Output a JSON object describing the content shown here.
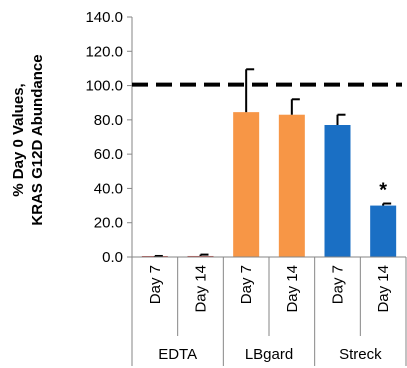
{
  "chart_data": {
    "type": "bar",
    "ylabel_lines": [
      "% Day 0 Values,",
      "KRAS G12D Abundance"
    ],
    "ylim": [
      0,
      140
    ],
    "yticks": [
      0,
      20,
      40,
      60,
      80,
      100,
      120,
      140
    ],
    "ytick_labels": [
      "0.0",
      "20.0",
      "40.0",
      "60.0",
      "80.0",
      "100.0",
      "120.0",
      "140.0"
    ],
    "grid": false,
    "reference_line": 100,
    "groups": [
      {
        "name": "EDTA",
        "color": "#c0504d",
        "bars": [
          {
            "label": "Day 7",
            "value": 0.3,
            "error": 0.3
          },
          {
            "label": "Day 14",
            "value": 0.6,
            "error": 0.8
          }
        ]
      },
      {
        "name": "LBgard",
        "color": "#f79646",
        "bars": [
          {
            "label": "Day 7",
            "value": 84.5,
            "error": 25
          },
          {
            "label": "Day 14",
            "value": 83,
            "error": 9
          }
        ]
      },
      {
        "name": "Streck",
        "color": "#1a6fc4",
        "bars": [
          {
            "label": "Day 7",
            "value": 77,
            "error": 6
          },
          {
            "label": "Day 14",
            "value": 30,
            "error": 1.2,
            "annotation": "*"
          }
        ]
      }
    ]
  }
}
